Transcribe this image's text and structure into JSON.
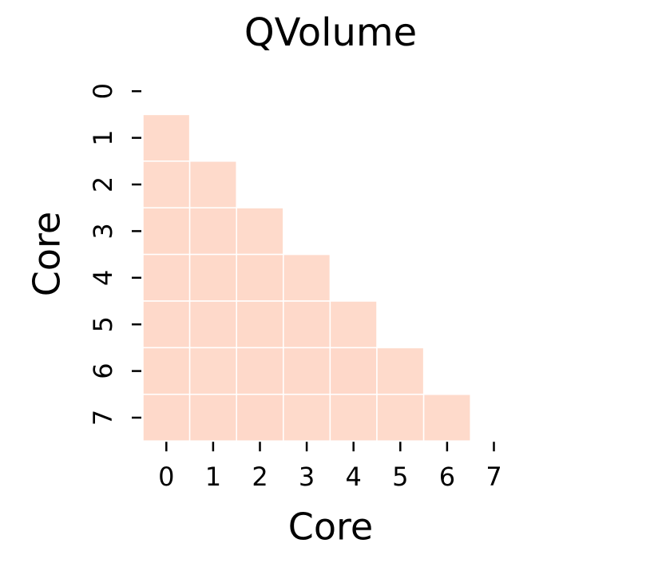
{
  "chart_data": {
    "type": "heatmap",
    "title": "QVolume",
    "xlabel": "Core",
    "ylabel": "Core",
    "x_categories": [
      0,
      1,
      2,
      3,
      4,
      5,
      6,
      7
    ],
    "y_categories": [
      0,
      1,
      2,
      3,
      4,
      5,
      6,
      7
    ],
    "values": [
      [
        null,
        null,
        null,
        null,
        null,
        null,
        null,
        null
      ],
      [
        0.47,
        null,
        null,
        null,
        null,
        null,
        null,
        null
      ],
      [
        0.47,
        0.47,
        null,
        null,
        null,
        null,
        null,
        null
      ],
      [
        0.49,
        0.48,
        0.47,
        null,
        null,
        null,
        null,
        null
      ],
      [
        0.48,
        0.49,
        0.49,
        0.47,
        null,
        null,
        null,
        null
      ],
      [
        0.48,
        0.48,
        0.49,
        0.48,
        0.47,
        null,
        null,
        null
      ],
      [
        0.49,
        0.47,
        0.48,
        0.48,
        0.5,
        0.47,
        null,
        null
      ],
      [
        0.48,
        0.48,
        0.5,
        0.47,
        0.47,
        0.47,
        0.47,
        null
      ]
    ],
    "cmap": [
      "#fff5f0",
      "#fcbba1"
    ],
    "vlim": [
      0,
      1
    ]
  }
}
